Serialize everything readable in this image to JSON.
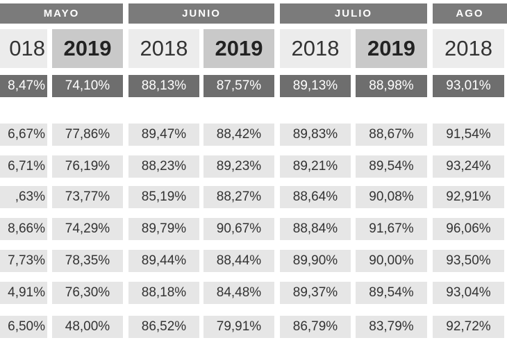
{
  "months": [
    "MAYO",
    "JUNIO",
    "JULIO",
    "AGO"
  ],
  "years": [
    "018",
    "2019",
    "2018",
    "2019",
    "2018",
    "2019",
    "2018"
  ],
  "rows": [
    [
      "8,47%",
      "74,10%",
      "88,13%",
      "87,57%",
      "89,13%",
      "88,98%",
      "93,01%"
    ],
    [
      "6,67%",
      "77,86%",
      "89,47%",
      "88,42%",
      "89,83%",
      "88,67%",
      "91,54%"
    ],
    [
      "6,71%",
      "76,19%",
      "88,23%",
      "89,23%",
      "89,21%",
      "89,54%",
      "93,24%"
    ],
    [
      ",63%",
      "73,77%",
      "85,19%",
      "88,27%",
      "88,64%",
      "90,08%",
      "92,91%"
    ],
    [
      "8,66%",
      "74,29%",
      "89,79%",
      "90,67%",
      "88,84%",
      "91,67%",
      "96,06%"
    ],
    [
      "7,73%",
      "78,35%",
      "89,44%",
      "88,44%",
      "89,90%",
      "90,00%",
      "93,50%"
    ],
    [
      "4,91%",
      "76,30%",
      "88,18%",
      "84,48%",
      "89,37%",
      "89,54%",
      "93,04%"
    ],
    [
      "6,50%",
      "48,00%",
      "86,52%",
      "79,91%",
      "86,79%",
      "83,79%",
      "92,72%"
    ]
  ]
}
